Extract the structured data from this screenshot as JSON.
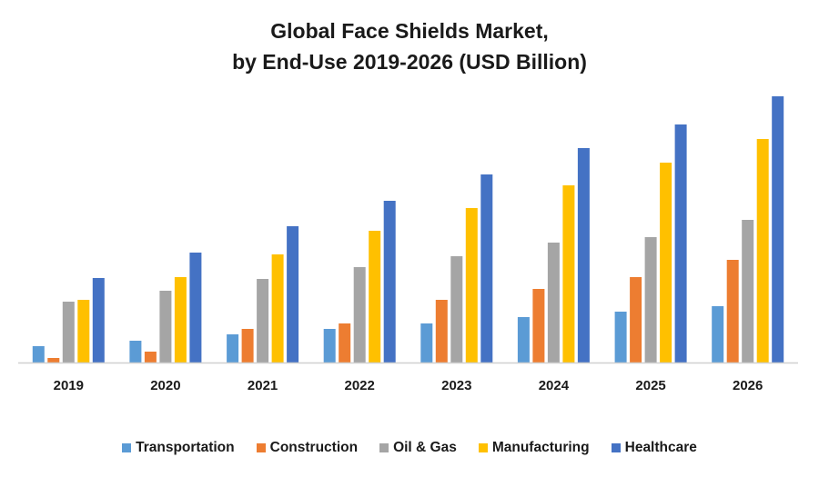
{
  "chart_data": {
    "type": "bar",
    "title": "Global Face Shields Market,",
    "subtitle": "by End-Use 2019-2026 (USD Billion)",
    "xlabel": "",
    "ylabel": "",
    "categories": [
      "2019",
      "2020",
      "2021",
      "2022",
      "2023",
      "2024",
      "2025",
      "2026"
    ],
    "ylim": [
      0,
      3.0
    ],
    "grid": false,
    "legend_position": "bottom",
    "series": [
      {
        "name": "Transportation",
        "color": "#5B9BD5",
        "values": [
          0.18,
          0.24,
          0.31,
          0.37,
          0.43,
          0.5,
          0.56,
          0.62
        ]
      },
      {
        "name": "Construction",
        "color": "#ED7D31",
        "values": [
          0.05,
          0.12,
          0.37,
          0.43,
          0.69,
          0.81,
          0.94,
          1.13
        ]
      },
      {
        "name": "Oil & Gas",
        "color": "#A5A5A5",
        "values": [
          0.67,
          0.79,
          0.92,
          1.05,
          1.17,
          1.32,
          1.38,
          1.57
        ]
      },
      {
        "name": "Manufacturing",
        "color": "#FFC000",
        "values": [
          0.69,
          0.94,
          1.19,
          1.45,
          1.7,
          1.95,
          2.2,
          2.46
        ]
      },
      {
        "name": "Healthcare",
        "color": "#4472C4",
        "values": [
          0.93,
          1.21,
          1.5,
          1.78,
          2.07,
          2.36,
          2.62,
          2.93
        ]
      }
    ]
  }
}
